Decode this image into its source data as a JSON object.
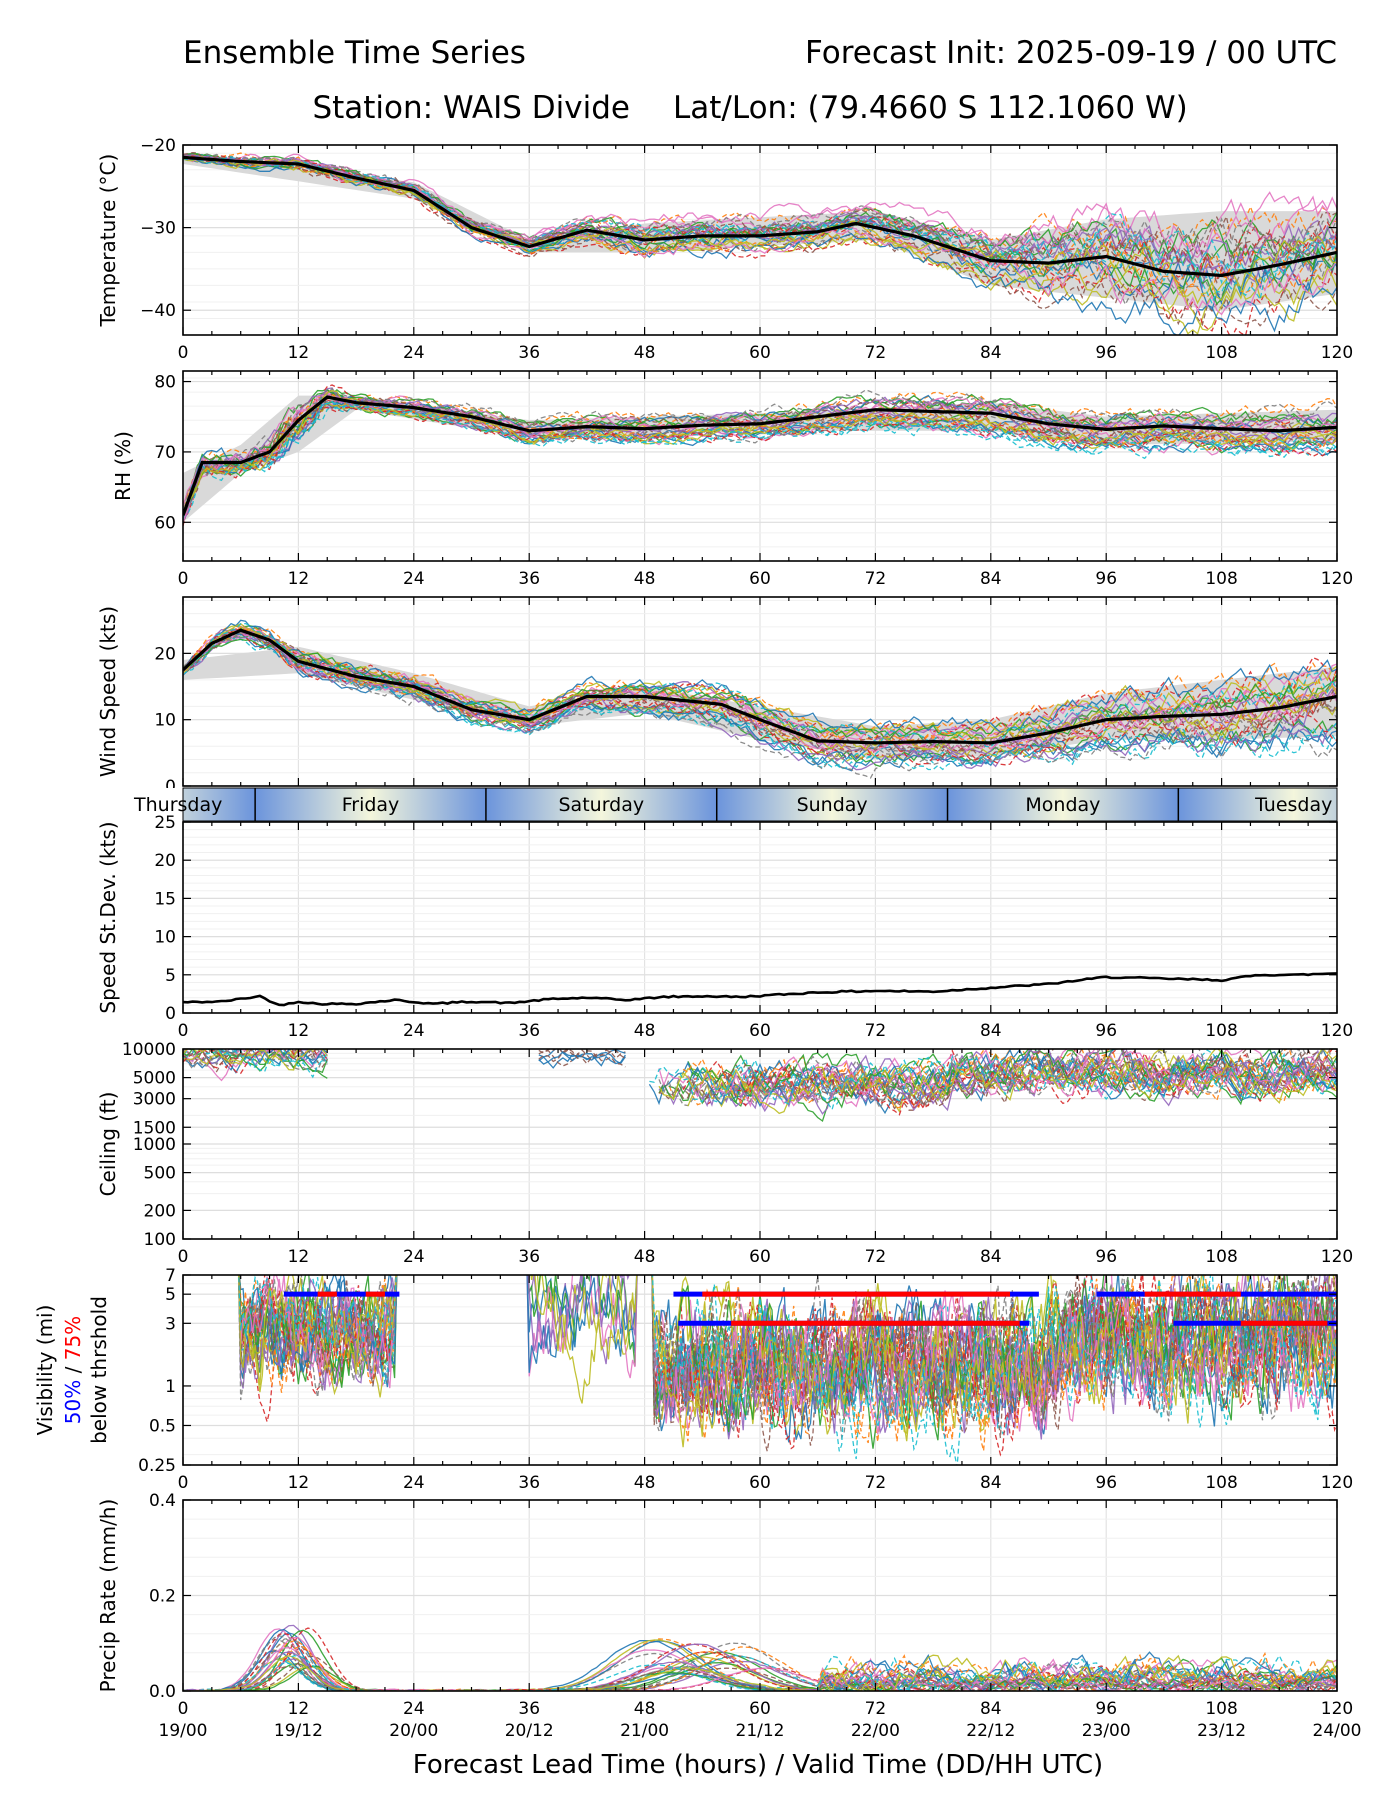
{
  "header": {
    "title": "Ensemble Time Series",
    "init": "Forecast Init: 2025-09-19 / 00 UTC",
    "station": "Station: WAIS Divide",
    "latlon": "Lat/Lon: (79.4660 S 112.1060 W)"
  },
  "chart_data": {
    "type": "line",
    "x_range": [
      0,
      120
    ],
    "x_ticks": [
      0,
      12,
      24,
      36,
      48,
      60,
      72,
      84,
      96,
      108,
      120
    ],
    "x_time_labels": [
      "19/00",
      "19/12",
      "20/00",
      "20/12",
      "21/00",
      "21/12",
      "22/00",
      "22/12",
      "23/00",
      "23/12",
      "24/00"
    ],
    "xlabel": "Forecast Lead Time (hours) / Valid Time (DD/HH UTC)",
    "member_colors": [
      "#1f77b4",
      "#ff7f0e",
      "#2ca02c",
      "#d62728",
      "#9467bd",
      "#8c564b",
      "#e377c2",
      "#7f7f7f",
      "#bcbd22",
      "#17becf"
    ],
    "member_count": 30,
    "day_strip": {
      "labels": [
        "Thursday",
        "Friday",
        "Saturday",
        "Sunday",
        "Monday",
        "Tuesday"
      ],
      "boundary_hours": [
        7.5,
        31.5,
        55.5,
        79.5,
        103.5
      ],
      "label_hours": [
        -0.5,
        19.5,
        43.5,
        67.5,
        91.5,
        115.5
      ]
    },
    "panels": [
      {
        "id": "temperature",
        "ylabel": "Temperature (°C)",
        "ylim": [
          -43,
          -20
        ],
        "yticks": [
          -20,
          -30,
          -40
        ],
        "ytick_labels": [
          "−20",
          "−30",
          "−40"
        ],
        "mean": {
          "x": [
            0,
            6,
            12,
            18,
            24,
            30,
            36,
            42,
            48,
            54,
            60,
            66,
            70,
            76,
            84,
            90,
            96,
            102,
            108,
            114,
            120
          ],
          "y": [
            -21.5,
            -22,
            -22.3,
            -24,
            -25.5,
            -30,
            -32.3,
            -30.3,
            -31.5,
            -31,
            -31,
            -30.5,
            -29.5,
            -31,
            -34,
            -34.3,
            -33.5,
            -35.3,
            -35.8,
            -34.5,
            -33
          ]
        },
        "spread": {
          "x": [
            0,
            24,
            36,
            48,
            72,
            84,
            96,
            108,
            120
          ],
          "lo": [
            -22.3,
            -26.5,
            -33,
            -33,
            -31.5,
            -37,
            -38.5,
            -40,
            -38
          ],
          "hi": [
            -21,
            -24.5,
            -31.5,
            -29.5,
            -28,
            -31.5,
            -29,
            -28,
            -28
          ]
        }
      },
      {
        "id": "rh",
        "ylabel": "RH (%)",
        "ylim": [
          54.5,
          81.5
        ],
        "yticks": [
          60,
          70,
          80
        ],
        "ytick_labels": [
          "60",
          "70",
          "80"
        ],
        "mean": {
          "x": [
            0,
            2,
            6,
            9,
            12,
            15,
            18,
            24,
            30,
            36,
            42,
            48,
            54,
            60,
            66,
            72,
            84,
            90,
            96,
            102,
            108,
            114,
            120
          ],
          "y": [
            61,
            68.5,
            68.5,
            70,
            74.5,
            77.8,
            77,
            76.3,
            75,
            73,
            73.6,
            73.3,
            73.8,
            74,
            75,
            76,
            75.5,
            74,
            73.2,
            73.7,
            73.3,
            73,
            73.5
          ]
        },
        "spread": {
          "x": [
            0,
            6,
            12,
            18,
            36,
            60,
            84,
            96,
            120
          ],
          "lo": [
            60,
            67,
            70,
            76,
            72,
            73,
            73,
            71,
            71.5
          ],
          "hi": [
            67,
            71,
            78,
            78,
            74.5,
            75.5,
            77,
            75,
            76
          ]
        }
      },
      {
        "id": "wind",
        "ylabel": "Wind Speed (kts)",
        "ylim": [
          0,
          28.5
        ],
        "yticks": [
          0,
          10,
          20
        ],
        "ytick_labels": [
          "0",
          "10",
          "20"
        ],
        "mean": {
          "x": [
            0,
            3,
            6,
            9,
            12,
            18,
            24,
            30,
            36,
            42,
            48,
            56,
            60,
            66,
            72,
            78,
            84,
            90,
            96,
            102,
            108,
            114,
            120
          ],
          "y": [
            17.5,
            21.5,
            23.5,
            22,
            18.8,
            16.5,
            15,
            11.5,
            10,
            13.5,
            13.5,
            12.3,
            10,
            6.8,
            6.5,
            6.7,
            6.5,
            8,
            10,
            10.5,
            10.8,
            11.8,
            13.5
          ]
        },
        "spread": {
          "x": [
            0,
            12,
            24,
            36,
            48,
            60,
            72,
            84,
            96,
            108,
            120
          ],
          "lo": [
            16,
            17,
            13,
            9,
            11,
            7,
            4,
            4.5,
            7,
            7,
            7.5
          ],
          "hi": [
            19,
            21,
            17,
            12,
            15,
            12,
            9,
            10,
            14,
            16,
            18
          ]
        }
      },
      {
        "id": "stdev",
        "ylabel": "Speed St.Dev. (kts)",
        "ylim": [
          0,
          25
        ],
        "yticks": [
          0,
          5,
          10,
          15,
          20,
          25
        ],
        "ytick_labels": [
          "0",
          "5",
          "10",
          "15",
          "20",
          "25"
        ],
        "mean": {
          "x": [
            0,
            4,
            8,
            10,
            12,
            14,
            18,
            22,
            26,
            30,
            34,
            38,
            42,
            46,
            50,
            54,
            58,
            62,
            66,
            72,
            78,
            84,
            90,
            96,
            102,
            108,
            112,
            116,
            120
          ],
          "y": [
            1.4,
            1.5,
            2.2,
            1,
            1.5,
            1.2,
            1.2,
            1.7,
            1.2,
            1.5,
            1.3,
            1.8,
            2,
            1.7,
            2.1,
            2.2,
            2.1,
            2.4,
            2.7,
            2.9,
            2.8,
            3.3,
            3.8,
            4.7,
            4.5,
            4.3,
            5,
            5,
            5.2
          ]
        }
      },
      {
        "id": "ceiling",
        "ylabel": "Ceiling (ft)",
        "ylim": [
          100,
          10000
        ],
        "yscale": "log",
        "yticks": [
          100,
          200,
          500,
          1000,
          1500,
          3000,
          5000,
          10000
        ],
        "ytick_labels": [
          "100",
          "200",
          "500",
          "1000",
          "1500",
          "3000",
          "5000",
          "10000"
        ]
      },
      {
        "id": "visibility",
        "ylabel_parts": [
          "Visibility (mi)",
          "50%",
          " / ",
          "75%",
          "below thrshold"
        ],
        "ylim": [
          0.25,
          7
        ],
        "yscale": "log",
        "yticks": [
          0.25,
          0.5,
          1,
          3,
          5,
          7
        ],
        "ytick_labels": [
          "0.25",
          "0.5",
          "1",
          "3",
          "5",
          "7"
        ],
        "threshold_bars": [
          {
            "level": 5,
            "color": "blue",
            "segments": [
              [
                10.5,
                22.5
              ],
              [
                51,
                89
              ],
              [
                95,
                120
              ]
            ]
          },
          {
            "level": 5,
            "color": "red",
            "segments": [
              [
                14,
                16
              ],
              [
                19,
                21
              ],
              [
                54,
                86
              ],
              [
                100,
                110
              ]
            ]
          },
          {
            "level": 3,
            "color": "blue",
            "segments": [
              [
                51.5,
                88
              ],
              [
                103,
                120
              ]
            ]
          },
          {
            "level": 3,
            "color": "red",
            "segments": [
              [
                57,
                87
              ],
              [
                110,
                119
              ]
            ]
          }
        ]
      },
      {
        "id": "precip",
        "ylabel": "Precip Rate (mm/h)",
        "ylim": [
          0,
          0.4
        ],
        "yticks": [
          0,
          0.2,
          0.4
        ],
        "ytick_labels": [
          "0.0",
          "0.2",
          "0.4"
        ]
      }
    ]
  }
}
